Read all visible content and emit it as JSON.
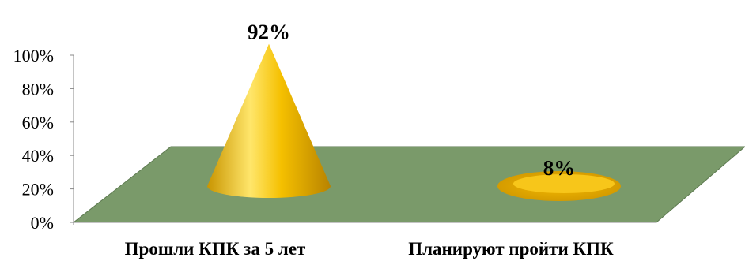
{
  "chart_data": {
    "type": "bar",
    "subtype": "3d-cone",
    "categories": [
      "Прошли КПК за  5 лет",
      "Планируют пройти КПК"
    ],
    "values": [
      92,
      8
    ],
    "data_labels": [
      "92%",
      "8%"
    ],
    "y_ticks": [
      "0%",
      "20%",
      "40%",
      "60%",
      "80%",
      "100%"
    ],
    "ylim": [
      0,
      100
    ],
    "grid": false,
    "legend": "none",
    "colors": {
      "floor": "#7a9a6a",
      "floor_edge": "#5d7a50",
      "cone_light": "#ffe66b",
      "cone_mid": "#f5c000",
      "cone_dark": "#b88300"
    }
  }
}
